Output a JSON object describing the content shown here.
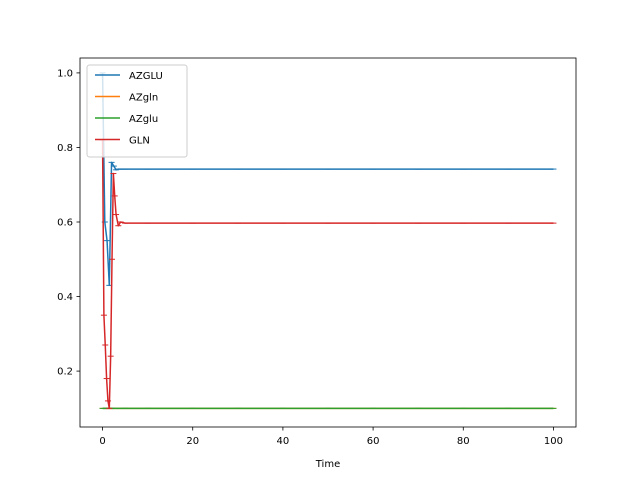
{
  "chart_data": {
    "type": "line",
    "title": "",
    "xlabel": "Time",
    "ylabel": "",
    "xlim": [
      -5,
      105
    ],
    "ylim": [
      0.05,
      1.04
    ],
    "xticks": [
      0,
      20,
      40,
      60,
      80,
      100
    ],
    "yticks": [
      0.2,
      0.4,
      0.6,
      0.8,
      1.0
    ],
    "xtick_labels": [
      "0",
      "20",
      "40",
      "60",
      "80",
      "100"
    ],
    "ytick_labels": [
      "0.2",
      "0.4",
      "0.6",
      "0.8",
      "1.0"
    ],
    "grid": false,
    "legend_position": "top-left",
    "series": [
      {
        "name": "AZGLU",
        "color": "#1f77b4",
        "x": [
          0,
          0.5,
          1,
          1.5,
          2,
          2.5,
          3,
          3.5,
          4,
          5,
          10,
          20,
          30,
          40,
          50,
          60,
          70,
          80,
          90,
          100
        ],
        "y": [
          1.0,
          0.6,
          0.55,
          0.43,
          0.76,
          0.75,
          0.74,
          0.742,
          0.742,
          0.742,
          0.742,
          0.742,
          0.742,
          0.742,
          0.742,
          0.742,
          0.742,
          0.742,
          0.742,
          0.742
        ]
      },
      {
        "name": "AZgln",
        "color": "#ff7f0e",
        "x": [
          0,
          1,
          2,
          5,
          10,
          20,
          30,
          40,
          50,
          60,
          70,
          80,
          90,
          100
        ],
        "y": [
          0.1,
          0.1,
          0.1,
          0.1,
          0.1,
          0.1,
          0.1,
          0.1,
          0.1,
          0.1,
          0.1,
          0.1,
          0.1,
          0.1
        ]
      },
      {
        "name": "AZglu",
        "color": "#2ca02c",
        "x": [
          0,
          1,
          2,
          5,
          10,
          20,
          30,
          40,
          50,
          60,
          70,
          80,
          90,
          100
        ],
        "y": [
          0.1,
          0.1,
          0.1,
          0.1,
          0.1,
          0.1,
          0.1,
          0.1,
          0.1,
          0.1,
          0.1,
          0.1,
          0.1,
          0.1
        ]
      },
      {
        "name": "GLN",
        "color": "#d62728",
        "x": [
          0,
          0.3,
          0.6,
          0.9,
          1.2,
          1.5,
          1.8,
          2.1,
          2.4,
          2.7,
          3,
          3.5,
          4,
          5,
          10,
          20,
          30,
          40,
          50,
          60,
          70,
          80,
          90,
          100
        ],
        "y": [
          0.82,
          0.35,
          0.27,
          0.18,
          0.12,
          0.1,
          0.24,
          0.5,
          0.73,
          0.67,
          0.62,
          0.59,
          0.6,
          0.597,
          0.597,
          0.597,
          0.597,
          0.597,
          0.597,
          0.597,
          0.597,
          0.597,
          0.597,
          0.597
        ]
      }
    ]
  }
}
